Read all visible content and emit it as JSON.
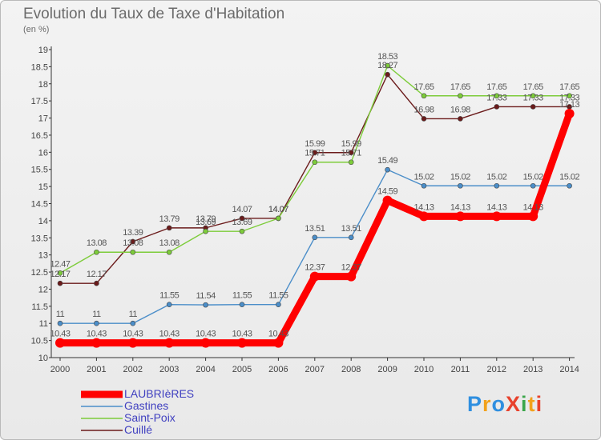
{
  "title": "Evolution du Taux de Taxe d'Habitation",
  "subtitle": "(en %)",
  "logo": "ProXiti",
  "chart_data": {
    "type": "line",
    "x": [
      "2000",
      "2001",
      "2002",
      "2003",
      "2004",
      "2005",
      "2006",
      "2007",
      "2008",
      "2009",
      "2010",
      "2011",
      "2012",
      "2013",
      "2014"
    ],
    "ylim": [
      10,
      19
    ],
    "yticks": [
      "10",
      "10.5",
      "11",
      "11.5",
      "12",
      "12.5",
      "13",
      "13.5",
      "14",
      "14.5",
      "15",
      "15.5",
      "16",
      "16.5",
      "17",
      "17.5",
      "18",
      "18.5",
      "19"
    ],
    "grid": false,
    "legend_position": "bottom-left",
    "series": [
      {
        "name": "Cuillé",
        "color": "#6b1b1b",
        "values": [
          12.17,
          12.17,
          13.39,
          13.79,
          13.79,
          14.07,
          14.07,
          15.99,
          15.99,
          18.27,
          16.98,
          16.98,
          17.33,
          17.33,
          17.33
        ],
        "labels": [
          "12.17",
          "12.17",
          "13.39",
          "13.79",
          "13.79",
          "14.07",
          "14.07",
          "15.99",
          "15.99",
          "18.27",
          "16.98",
          "16.98",
          "17.33",
          "17.33",
          "17.33"
        ]
      },
      {
        "name": "Saint-Poix",
        "color": "#7dcc3a",
        "values": [
          12.47,
          13.08,
          13.08,
          13.08,
          13.69,
          13.69,
          14.07,
          15.71,
          15.71,
          18.53,
          17.65,
          17.65,
          17.65,
          17.65,
          17.65
        ],
        "labels": [
          "12.47",
          "13.08",
          "13.08",
          "13.08",
          "13.69",
          "13.69",
          "14.07",
          "15.71",
          "15.71",
          "18.53",
          "17.65",
          "17.65",
          "17.65",
          "17.65",
          "17.65"
        ]
      },
      {
        "name": "Gastines",
        "color": "#4b8ec9",
        "values": [
          11,
          11,
          11,
          11.55,
          11.54,
          11.55,
          11.55,
          13.51,
          13.51,
          15.49,
          15.02,
          15.02,
          15.02,
          15.02,
          15.02
        ],
        "labels": [
          "11",
          "11",
          "11",
          "11.55",
          "11.54",
          "11.55",
          "11.55",
          "13.51",
          "13.51",
          "15.49",
          "15.02",
          "15.02",
          "15.02",
          "15.02",
          "15.02"
        ]
      },
      {
        "name": "LAUBRIèRES",
        "color": "#ff0000",
        "values": [
          10.43,
          10.43,
          10.43,
          10.43,
          10.43,
          10.43,
          10.43,
          12.37,
          12.37,
          14.59,
          14.13,
          14.13,
          14.13,
          14.13,
          17.13
        ],
        "labels": [
          "10.43",
          "10.43",
          "10.43",
          "10.43",
          "10.43",
          "10.43",
          "10.43",
          "12.37",
          "12.37",
          "14.59",
          "14.13",
          "14.13",
          "14.13",
          "14.13",
          "17.13"
        ]
      }
    ],
    "legend_order": [
      "LAUBRIèRES",
      "Gastines",
      "Saint-Poix",
      "Cuillé"
    ]
  }
}
